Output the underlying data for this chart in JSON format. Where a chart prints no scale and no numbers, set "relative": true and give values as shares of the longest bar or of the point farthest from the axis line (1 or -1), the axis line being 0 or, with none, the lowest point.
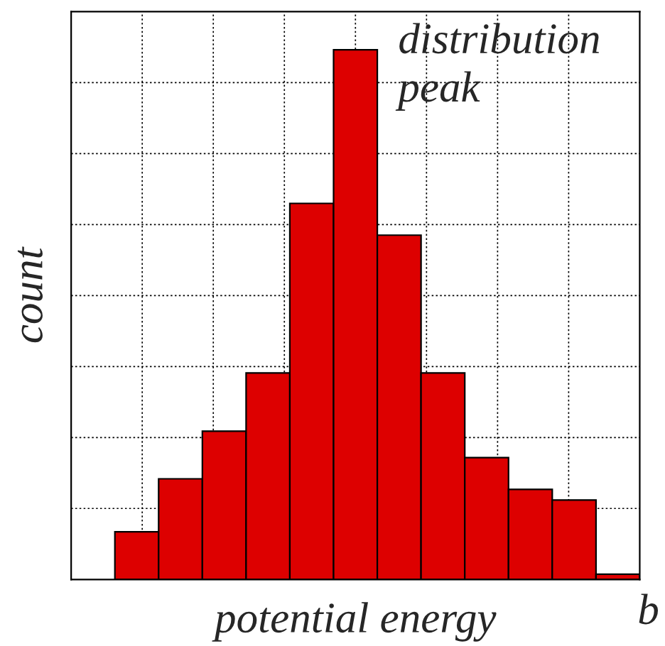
{
  "chart_data": {
    "type": "bar",
    "relative": true,
    "xlabel": "potential energy",
    "ylabel": "count",
    "annotations": [
      "distribution\npeak",
      "b"
    ],
    "categories": [
      null,
      null,
      null,
      null,
      null,
      null,
      null,
      null,
      null,
      null,
      null,
      null
    ],
    "values": [
      0.09,
      0.19,
      0.28,
      0.39,
      0.71,
      1,
      0.65,
      0.39,
      0.23,
      0.17,
      0.15,
      0.01
    ],
    "color": "#dd0000",
    "grid": true
  }
}
